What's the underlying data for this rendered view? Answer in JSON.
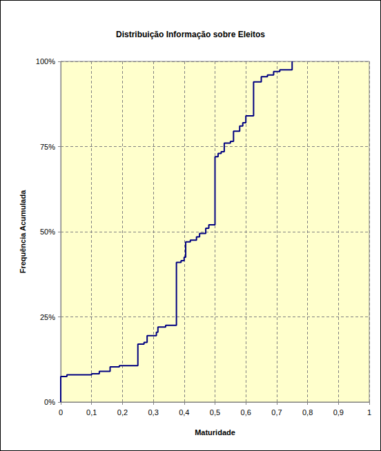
{
  "chart_data": {
    "type": "line",
    "title": "Distribuição Informação sobre Eleitos",
    "x_label": "Maturidade",
    "y_label": "Frequência Acumulada",
    "line_style": "step",
    "color": "#000080",
    "grid": true,
    "x": [
      0,
      0,
      0.02,
      0.1,
      0.125,
      0.16,
      0.19,
      0.25,
      0.27,
      0.28,
      0.31,
      0.315,
      0.34,
      0.375,
      0.39,
      0.4,
      0.405,
      0.42,
      0.44,
      0.45,
      0.47,
      0.48,
      0.5,
      0.51,
      0.52,
      0.53,
      0.55,
      0.56,
      0.58,
      0.59,
      0.6,
      0.625,
      0.65,
      0.67,
      0.69,
      0.71,
      0.75
    ],
    "values": [
      0,
      7.5,
      8,
      8.3,
      9,
      10.3,
      10.7,
      17,
      17.5,
      19.5,
      20.5,
      22,
      22.5,
      41,
      41.5,
      42.5,
      47,
      47.5,
      48.5,
      49.5,
      51,
      52,
      72,
      73,
      73.5,
      76,
      76.5,
      79.5,
      81,
      82,
      84,
      94,
      95.5,
      96,
      97,
      97.5,
      100
    ],
    "xlim": [
      0,
      1
    ],
    "xticks": [
      0,
      {
        "value": 0.1,
        "label": "0,1"
      },
      {
        "value": 0.2,
        "label": "0,2"
      },
      {
        "value": 0.3,
        "label": "0,3"
      },
      {
        "value": 0.4,
        "label": "0,4"
      },
      {
        "value": 0.5,
        "label": "0,5"
      },
      {
        "value": 0.6,
        "label": "0,6"
      },
      {
        "value": 0.7,
        "label": "0,7"
      },
      {
        "value": 0.8,
        "label": "0,8"
      },
      {
        "value": 0.9,
        "label": "0,9"
      },
      1
    ],
    "ylim": [
      0,
      100
    ],
    "yticks": [
      {
        "value": 0,
        "label": "0%"
      },
      {
        "value": 25,
        "label": "25%"
      },
      {
        "value": 50,
        "label": "50%"
      },
      {
        "value": 75,
        "label": "75%"
      },
      {
        "value": 100,
        "label": "100%"
      }
    ]
  }
}
